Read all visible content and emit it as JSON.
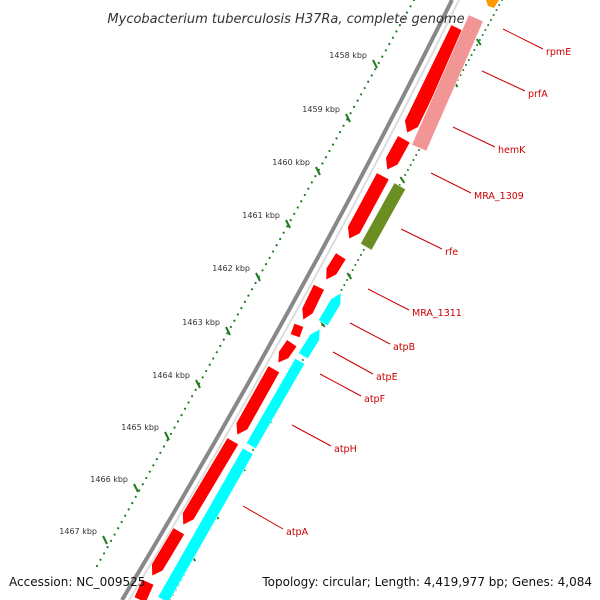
{
  "title": "Mycobacterium tuberculosis H37Ra, complete genome",
  "colors": {
    "forward_gene": "#ff0000",
    "reverse_gene": "#f29595",
    "rna_gene": "#6b8e23",
    "atp_gene": "#00ffff",
    "label": "#cc0000",
    "backbone": "#888888",
    "ticks": "#1f7a1f",
    "accent": "#ff9900"
  },
  "scale": {
    "labels": [
      "1458 kbp",
      "1459 kbp",
      "1460 kbp",
      "1461 kbp",
      "1462 kbp",
      "1463 kbp",
      "1464 kbp",
      "1465 kbp",
      "1466 kbp",
      "1467 kbp"
    ]
  },
  "genes": [
    {
      "name": "rpmE"
    },
    {
      "name": "prfA"
    },
    {
      "name": "hemK"
    },
    {
      "name": "MRA_1309"
    },
    {
      "name": "rfe"
    },
    {
      "name": "MRA_1311"
    },
    {
      "name": "atpB"
    },
    {
      "name": "atpE"
    },
    {
      "name": "atpF"
    },
    {
      "name": "atpH"
    },
    {
      "name": "atpA"
    }
  ],
  "footer": {
    "accession": "Accession: NC_009525",
    "summary": "Topology: circular; Length: 4,419,977 bp; Genes: 4,084"
  }
}
